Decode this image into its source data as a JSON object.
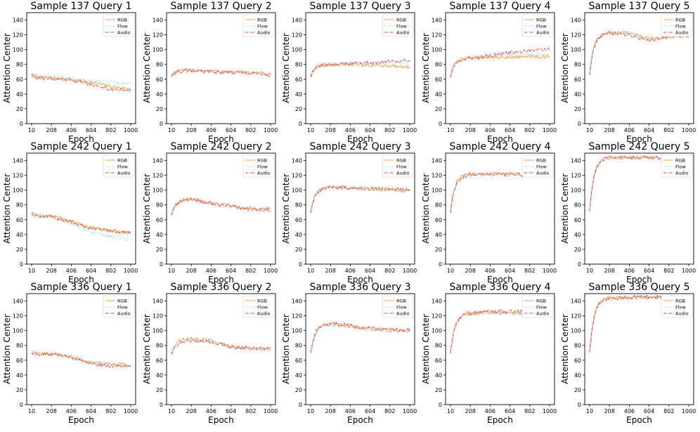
{
  "figure": {
    "axis_xlabel": "Epoch",
    "axis_ylabel": "Attention Center",
    "x_ticks": [
      10,
      208,
      406,
      604,
      802,
      1000
    ],
    "y_ticks": [
      0,
      20,
      40,
      60,
      80,
      100,
      120,
      140
    ],
    "legend": [
      "RGB",
      "Flow",
      "Audio"
    ],
    "series_colors": {
      "RGB": "#f5a345",
      "Flow": "#a6dcf2",
      "Audio": "#e8433b"
    }
  },
  "chart_data": [
    {
      "type": "line",
      "title": "Sample 137 Query 1",
      "xlabel": "Epoch",
      "ylabel": "Attention Center",
      "xlim": [
        10,
        1000
      ],
      "ylim": [
        0,
        150
      ],
      "x": [
        10,
        208,
        406,
        604,
        802,
        1000
      ],
      "series": [
        {
          "name": "RGB",
          "values": [
            67,
            62,
            59,
            56,
            50,
            47
          ]
        },
        {
          "name": "Flow",
          "values": [
            67,
            63,
            60,
            58,
            56,
            54
          ]
        },
        {
          "name": "Audio",
          "values": [
            66,
            61,
            59,
            53,
            46,
            45
          ]
        }
      ]
    },
    {
      "type": "line",
      "title": "Sample 137 Query 2",
      "xlabel": "Epoch",
      "ylabel": "Attention Center",
      "xlim": [
        10,
        1000
      ],
      "ylim": [
        0,
        150
      ],
      "x": [
        10,
        208,
        406,
        604,
        802,
        1000
      ],
      "series": [
        {
          "name": "RGB",
          "values": [
            66,
            72,
            71,
            70,
            69,
            67
          ]
        },
        {
          "name": "Flow",
          "values": [
            67,
            73,
            71,
            70,
            69,
            68
          ]
        },
        {
          "name": "Audio",
          "values": [
            65,
            71,
            70,
            69,
            68,
            66
          ]
        }
      ]
    },
    {
      "type": "line",
      "title": "Sample 137 Query 3",
      "xlabel": "Epoch",
      "ylabel": "Attention Center",
      "xlim": [
        10,
        1000
      ],
      "ylim": [
        0,
        150
      ],
      "x": [
        10,
        208,
        406,
        604,
        802,
        1000
      ],
      "series": [
        {
          "name": "RGB",
          "values": [
            65,
            80,
            80,
            79,
            78,
            77
          ]
        },
        {
          "name": "Flow",
          "values": [
            66,
            81,
            81,
            82,
            82,
            83
          ]
        },
        {
          "name": "Audio",
          "values": [
            64,
            79,
            82,
            82,
            84,
            85
          ]
        }
      ]
    },
    {
      "type": "line",
      "title": "Sample 137 Query 4",
      "xlabel": "Epoch",
      "ylabel": "Attention Center",
      "xlim": [
        10,
        1000
      ],
      "ylim": [
        0,
        150
      ],
      "x": [
        10,
        208,
        406,
        604,
        802,
        1000
      ],
      "series": [
        {
          "name": "RGB",
          "values": [
            64,
            89,
            90,
            90,
            91,
            90
          ]
        },
        {
          "name": "Flow",
          "values": [
            66,
            90,
            93,
            94,
            94,
            95
          ]
        },
        {
          "name": "Audio",
          "values": [
            63,
            88,
            92,
            96,
            98,
            101
          ]
        }
      ]
    },
    {
      "type": "line",
      "title": "Sample 137 Query 5",
      "xlabel": "Epoch",
      "ylabel": "Attention Center",
      "xlim": [
        10,
        1000
      ],
      "ylim": [
        0,
        150
      ],
      "x": [
        10,
        208,
        406,
        604,
        802,
        1000
      ],
      "series": [
        {
          "name": "RGB",
          "values": [
            67,
            123,
            122,
            115,
            117,
            118
          ]
        },
        {
          "name": "Flow",
          "values": [
            68,
            124,
            123,
            114,
            118,
            119
          ]
        },
        {
          "name": "Audio",
          "values": [
            66,
            122,
            120,
            112,
            118,
            119
          ]
        }
      ]
    },
    {
      "type": "line",
      "title": "Sample 242 Query 1",
      "xlabel": "Epoch",
      "ylabel": "Attention Center",
      "xlim": [
        10,
        1000
      ],
      "ylim": [
        0,
        150
      ],
      "x": [
        10,
        208,
        406,
        604,
        802,
        1000
      ],
      "series": [
        {
          "name": "RGB",
          "values": [
            69,
            65,
            58,
            49,
            45,
            43
          ]
        },
        {
          "name": "Flow",
          "values": [
            68,
            64,
            55,
            43,
            37,
            33
          ]
        },
        {
          "name": "Audio",
          "values": [
            68,
            64,
            57,
            48,
            45,
            42
          ]
        }
      ]
    },
    {
      "type": "line",
      "title": "Sample 242 Query 2",
      "xlabel": "Epoch",
      "ylabel": "Attention Center",
      "xlim": [
        10,
        1000
      ],
      "ylim": [
        0,
        150
      ],
      "x": [
        10,
        208,
        406,
        604,
        802,
        1000
      ],
      "series": [
        {
          "name": "RGB",
          "values": [
            68,
            88,
            83,
            78,
            74,
            72
          ]
        },
        {
          "name": "Flow",
          "values": [
            69,
            86,
            82,
            77,
            73,
            70
          ]
        },
        {
          "name": "Audio",
          "values": [
            66,
            87,
            82,
            78,
            75,
            74
          ]
        }
      ]
    },
    {
      "type": "line",
      "title": "Sample 242 Query 3",
      "xlabel": "Epoch",
      "ylabel": "Attention Center",
      "xlim": [
        10,
        1000
      ],
      "ylim": [
        0,
        150
      ],
      "x": [
        10,
        208,
        406,
        604,
        802,
        1000
      ],
      "series": [
        {
          "name": "RGB",
          "values": [
            70,
            104,
            103,
            102,
            100,
            99
          ]
        },
        {
          "name": "Flow",
          "values": [
            71,
            105,
            104,
            101,
            100,
            100
          ]
        },
        {
          "name": "Audio",
          "values": [
            69,
            103,
            104,
            102,
            101,
            101
          ]
        }
      ]
    },
    {
      "type": "line",
      "title": "Sample 242 Query 4",
      "xlabel": "Epoch",
      "ylabel": "Attention Center",
      "xlim": [
        10,
        1000
      ],
      "ylim": [
        0,
        150
      ],
      "x": [
        10,
        208,
        406,
        604,
        802,
        1000
      ],
      "series": [
        {
          "name": "RGB",
          "values": [
            70,
            122,
            122,
            123,
            121,
            121
          ]
        },
        {
          "name": "Flow",
          "values": [
            72,
            121,
            121,
            121,
            120,
            120
          ]
        },
        {
          "name": "Audio",
          "values": [
            69,
            120,
            122,
            120,
            121,
            123
          ]
        }
      ]
    },
    {
      "type": "line",
      "title": "Sample 242 Query 5",
      "xlabel": "Epoch",
      "ylabel": "Attention Center",
      "xlim": [
        10,
        1000
      ],
      "ylim": [
        0,
        150
      ],
      "x": [
        10,
        208,
        406,
        604,
        802,
        1000
      ],
      "series": [
        {
          "name": "RGB",
          "values": [
            72,
            144,
            144,
            144,
            143,
            143
          ]
        },
        {
          "name": "Flow",
          "values": [
            74,
            143,
            145,
            145,
            144,
            144
          ]
        },
        {
          "name": "Audio",
          "values": [
            71,
            144,
            144,
            144,
            143,
            144
          ]
        }
      ]
    },
    {
      "type": "line",
      "title": "Sample 336 Query 1",
      "xlabel": "Epoch",
      "ylabel": "Attention Center",
      "xlim": [
        10,
        1000
      ],
      "ylim": [
        0,
        150
      ],
      "x": [
        10,
        208,
        406,
        604,
        802,
        1000
      ],
      "series": [
        {
          "name": "RGB",
          "values": [
            70,
            69,
            65,
            57,
            54,
            54
          ]
        },
        {
          "name": "Flow",
          "values": [
            71,
            70,
            66,
            57,
            55,
            53
          ]
        },
        {
          "name": "Audio",
          "values": [
            69,
            68,
            64,
            55,
            52,
            52
          ]
        }
      ]
    },
    {
      "type": "line",
      "title": "Sample 336 Query 2",
      "xlabel": "Epoch",
      "ylabel": "Attention Center",
      "xlim": [
        10,
        1000
      ],
      "ylim": [
        0,
        150
      ],
      "x": [
        10,
        208,
        406,
        604,
        802,
        1000
      ],
      "series": [
        {
          "name": "RGB",
          "values": [
            68,
            90,
            86,
            79,
            75,
            75
          ]
        },
        {
          "name": "Flow",
          "values": [
            69,
            88,
            85,
            78,
            74,
            73
          ]
        },
        {
          "name": "Audio",
          "values": [
            67,
            86,
            85,
            78,
            76,
            76
          ]
        }
      ]
    },
    {
      "type": "line",
      "title": "Sample 336 Query 3",
      "xlabel": "Epoch",
      "ylabel": "Attention Center",
      "xlim": [
        10,
        1000
      ],
      "ylim": [
        0,
        150
      ],
      "x": [
        10,
        208,
        406,
        604,
        802,
        1000
      ],
      "series": [
        {
          "name": "RGB",
          "values": [
            70,
            109,
            106,
            102,
            100,
            100
          ]
        },
        {
          "name": "Flow",
          "values": [
            71,
            107,
            105,
            101,
            100,
            99
          ]
        },
        {
          "name": "Audio",
          "values": [
            69,
            110,
            107,
            103,
            101,
            101
          ]
        }
      ]
    },
    {
      "type": "line",
      "title": "Sample 336 Query 4",
      "xlabel": "Epoch",
      "ylabel": "Attention Center",
      "xlim": [
        10,
        1000
      ],
      "ylim": [
        0,
        150
      ],
      "x": [
        10,
        208,
        406,
        604,
        802,
        1000
      ],
      "series": [
        {
          "name": "RGB",
          "values": [
            69,
            124,
            125,
            124,
            122,
            121
          ]
        },
        {
          "name": "Flow",
          "values": [
            70,
            122,
            124,
            123,
            121,
            120
          ]
        },
        {
          "name": "Audio",
          "values": [
            68,
            123,
            126,
            126,
            125,
            124
          ]
        }
      ]
    },
    {
      "type": "line",
      "title": "Sample 336 Query 5",
      "xlabel": "Epoch",
      "ylabel": "Attention Center",
      "xlim": [
        10,
        1000
      ],
      "ylim": [
        0,
        150
      ],
      "x": [
        10,
        208,
        406,
        604,
        802,
        1000
      ],
      "series": [
        {
          "name": "RGB",
          "values": [
            70,
            144,
            145,
            145,
            145,
            145
          ]
        },
        {
          "name": "Flow",
          "values": [
            72,
            143,
            144,
            145,
            144,
            144
          ]
        },
        {
          "name": "Audio",
          "values": [
            69,
            144,
            145,
            146,
            145,
            145
          ]
        }
      ]
    }
  ]
}
